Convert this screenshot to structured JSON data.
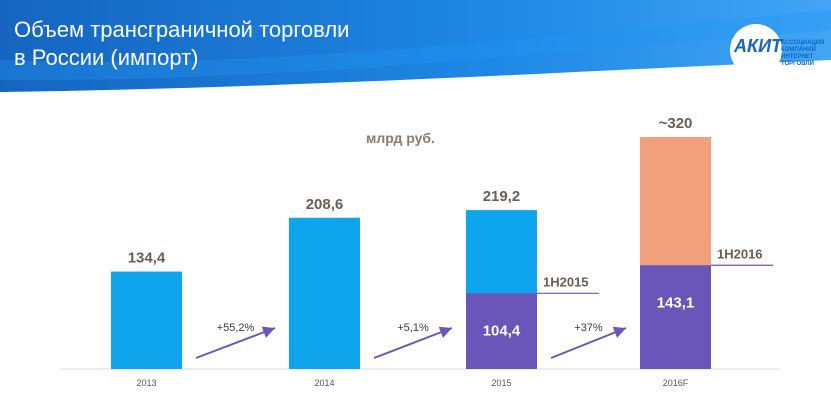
{
  "header": {
    "title_line1": "Объем трансграничной торговли",
    "title_line2": "в России (импорт)",
    "logo_text": "АКИТ",
    "logo_subtitle": "АССОЦИАЦИЯ КОМПАНИЙ ИНТЕРНЕТ ТОРГОВЛИ"
  },
  "colors": {
    "banner": "#1a73d4",
    "bar_main": "#0ea5ec",
    "bar_half": "#6a56b8",
    "bar_forecast": "#f0a07a",
    "arrow": "#6a56b8",
    "value_text": "#6b5d50",
    "axis_text": "#595959"
  },
  "chart_data": {
    "type": "bar",
    "unit_label": "млрд руб.",
    "categories": [
      "2013",
      "2014",
      "2015",
      "2016F"
    ],
    "totals": [
      134.4,
      208.6,
      219.2,
      320
    ],
    "total_labels": [
      "134,4",
      "208,6",
      "219,2",
      "~320"
    ],
    "half_year_values": [
      null,
      null,
      104.4,
      143.1
    ],
    "half_year_labels": [
      "",
      "",
      "104,4",
      "143,1"
    ],
    "half_year_markers": [
      "",
      "",
      "1H2015",
      "1H2016"
    ],
    "growth_labels": [
      "+55,2%",
      "+5,1%",
      "+37%"
    ],
    "ylim": [
      0,
      320
    ]
  }
}
